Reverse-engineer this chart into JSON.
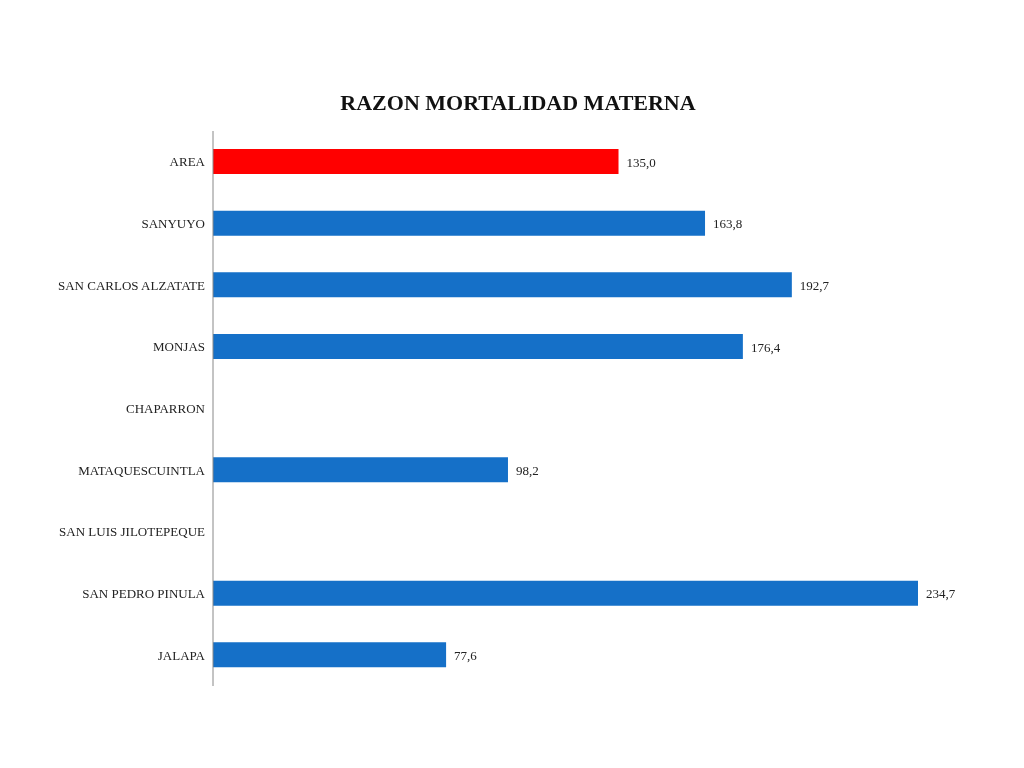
{
  "chart_data": {
    "type": "bar",
    "orientation": "horizontal",
    "title": "RAZON MORTALIDAD MATERNA",
    "categories": [
      "AREA",
      "SANYUYO",
      "SAN CARLOS ALZATATE",
      "MONJAS",
      "CHAPARRON",
      "MATAQUESCUINTLA",
      "SAN LUIS JILOTEPEQUE",
      "SAN PEDRO PINULA",
      "JALAPA"
    ],
    "values": [
      135.0,
      163.8,
      192.7,
      176.4,
      null,
      98.2,
      null,
      234.7,
      77.6
    ],
    "value_labels": [
      "135,0",
      "163,8",
      "192,7",
      "176,4",
      null,
      "98,2",
      null,
      "234,7",
      "77,6"
    ],
    "colors": [
      "#ff0000",
      "#1570c8",
      "#1570c8",
      "#1570c8",
      "#1570c8",
      "#1570c8",
      "#1570c8",
      "#1570c8",
      "#1570c8"
    ],
    "grid": false,
    "legend": false
  }
}
